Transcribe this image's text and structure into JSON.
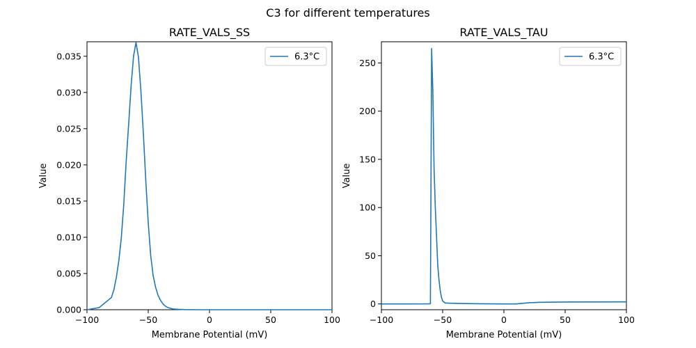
{
  "figure": {
    "suptitle": "C3 for different temperatures"
  },
  "chart_data": [
    {
      "type": "line",
      "title": "RATE_VALS_SS",
      "xlabel": "Membrane Potential (mV)",
      "ylabel": "Value",
      "xlim": [
        -100,
        100
      ],
      "ylim": [
        0,
        0.037
      ],
      "xticks": [
        -100,
        -50,
        0,
        50,
        100
      ],
      "yticks": [
        0.0,
        0.005,
        0.01,
        0.015,
        0.02,
        0.025,
        0.03,
        0.035
      ],
      "ytick_labels": [
        "0.000",
        "0.005",
        "0.010",
        "0.015",
        "0.020",
        "0.025",
        "0.030",
        "0.035"
      ],
      "grid": false,
      "legend_position": "top-right",
      "series": [
        {
          "name": "6.3°C",
          "color": "#1f77b4",
          "x": [
            -100,
            -90,
            -80,
            -78,
            -76,
            -74,
            -72,
            -70,
            -68,
            -66,
            -64,
            -62,
            -60,
            -58,
            -56,
            -54,
            -52,
            -50,
            -48,
            -46,
            -44,
            -42,
            -40,
            -38,
            -36,
            -34,
            -32,
            -30,
            -25,
            -20,
            -10,
            0,
            20,
            50,
            100
          ],
          "y": [
            0.0,
            0.0003,
            0.0017,
            0.0028,
            0.0045,
            0.0068,
            0.0099,
            0.0145,
            0.0205,
            0.0256,
            0.0309,
            0.035,
            0.0369,
            0.0349,
            0.0302,
            0.0244,
            0.0178,
            0.012,
            0.0075,
            0.0047,
            0.0031,
            0.002,
            0.0013,
            0.0008,
            0.0005,
            0.0003,
            0.0002,
            0.0001,
            5e-05,
            2e-05,
            0.0,
            0.0,
            0.0,
            0.0,
            0.0
          ]
        }
      ]
    },
    {
      "type": "line",
      "title": "RATE_VALS_TAU",
      "xlabel": "Membrane Potential (mV)",
      "ylabel": "Value",
      "xlim": [
        -100,
        100
      ],
      "ylim": [
        -6,
        272
      ],
      "xticks": [
        -100,
        -50,
        0,
        50,
        100
      ],
      "yticks": [
        0,
        50,
        100,
        150,
        200,
        250
      ],
      "ytick_labels": [
        "0",
        "50",
        "100",
        "150",
        "200",
        "250"
      ],
      "grid": false,
      "legend_position": "top-right",
      "series": [
        {
          "name": "6.3°C",
          "color": "#1f77b4",
          "x": [
            -100,
            -80,
            -62,
            -60,
            -59,
            -58,
            -57,
            -56,
            -55,
            -54,
            -53,
            -52,
            -51,
            -50,
            -48,
            -45,
            -40,
            -30,
            -20,
            -10,
            0,
            10,
            20,
            30,
            50,
            100
          ],
          "y": [
            0.0,
            0.0,
            0.1,
            0.2,
            265,
            220,
            140,
            100,
            70,
            40,
            25,
            14,
            7,
            3,
            1,
            0.8,
            0.6,
            0.4,
            0.2,
            0.1,
            0.0,
            0.0,
            1.2,
            1.7,
            2.0,
            2.2
          ]
        }
      ]
    }
  ]
}
